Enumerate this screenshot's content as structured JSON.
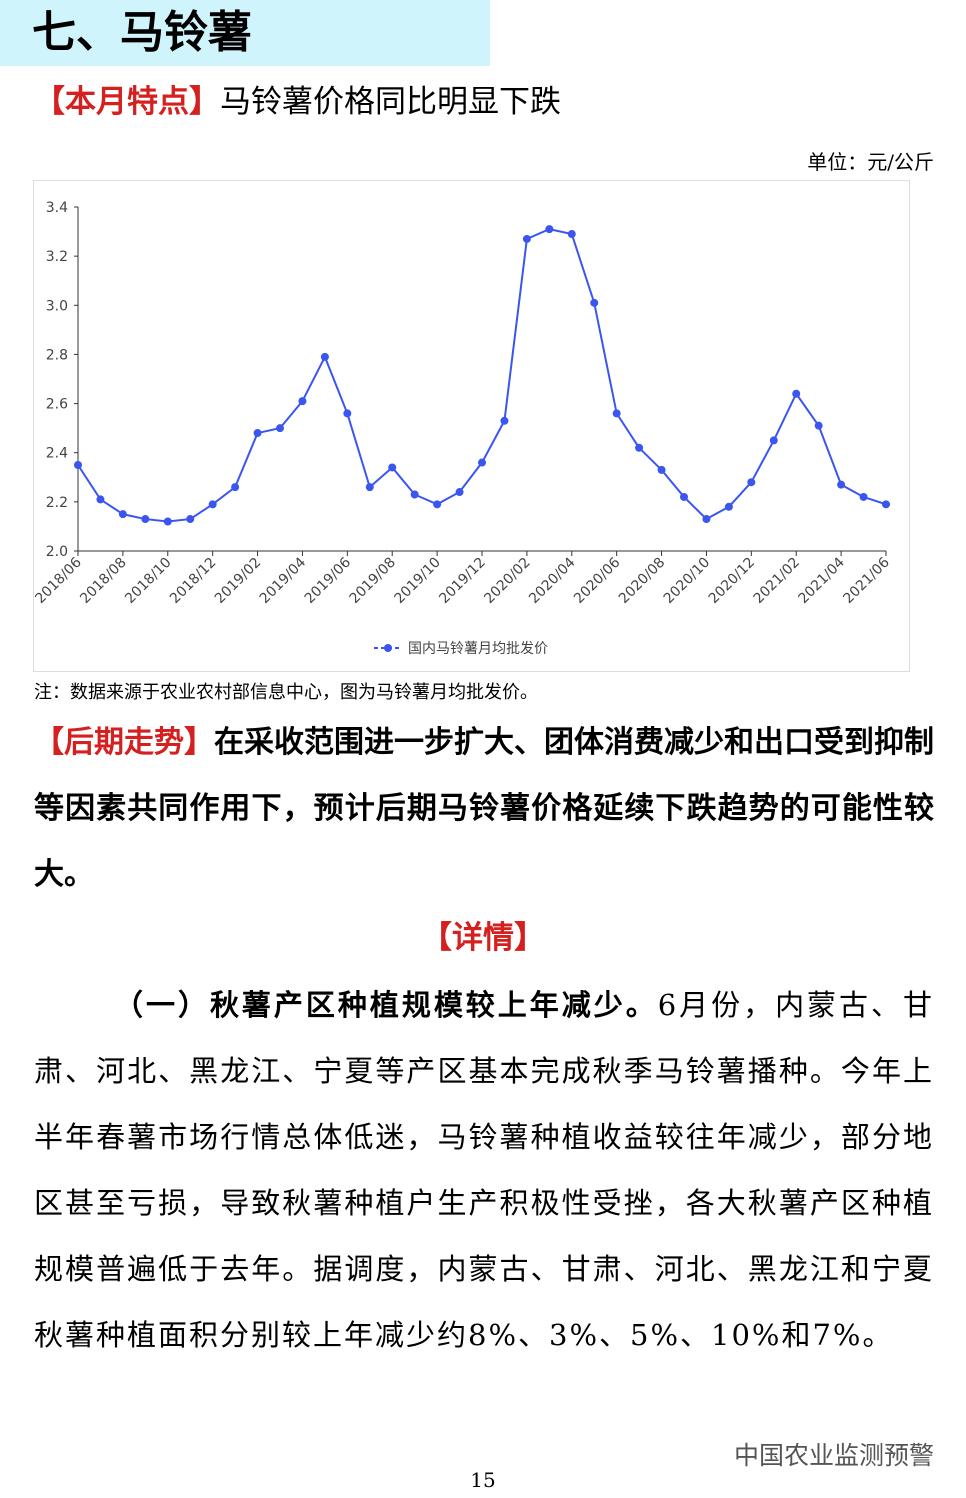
{
  "header": {
    "title": "七、马铃薯"
  },
  "feature": {
    "label": "【本月特点】",
    "text": "马铃薯价格同比明显下跌"
  },
  "unit": "单位：元/公斤",
  "chart_data": {
    "type": "line",
    "categories": [
      "2018/06",
      null,
      "2018/08",
      null,
      "2018/10",
      null,
      "2018/12",
      null,
      "2019/02",
      null,
      "2019/04",
      null,
      "2019/06",
      null,
      "2019/08",
      null,
      "2019/10",
      null,
      "2019/12",
      null,
      "2020/02",
      null,
      "2020/04",
      null,
      "2020/06",
      null,
      "2020/08",
      null,
      "2020/10",
      null,
      "2020/12",
      null,
      "2021/02",
      null,
      "2021/04",
      null,
      "2021/06"
    ],
    "series": [
      {
        "name": "国内马铃薯月均批发价",
        "color": "#3a55f0",
        "values": [
          2.35,
          2.21,
          2.15,
          2.13,
          2.12,
          2.13,
          2.19,
          2.26,
          2.48,
          2.5,
          2.61,
          2.79,
          2.56,
          2.26,
          2.34,
          2.23,
          2.19,
          2.24,
          2.36,
          2.53,
          3.27,
          3.31,
          3.29,
          3.01,
          2.56,
          2.42,
          2.33,
          2.22,
          2.13,
          2.18,
          2.28,
          2.45,
          2.64,
          2.51,
          2.27,
          2.22,
          2.19
        ]
      }
    ],
    "ylim": [
      2.0,
      3.4
    ],
    "yticks": [
      {
        "value": 2,
        "label": "2.0"
      },
      2.2,
      2.4,
      2.6,
      2.8,
      {
        "value": 3,
        "label": "3.0"
      },
      3.2,
      3.4
    ],
    "legend": "bottom"
  },
  "note": "注：数据来源于农业农村部信息中心，图为马铃薯月均批发价。",
  "trend": {
    "label": "【后期走势】",
    "text": "在采收范围进一步扩大、团体消费减少和出口受到抑制等因素共同作用下，预计后期马铃薯价格延续下跌趋势的可能性较大。"
  },
  "details": {
    "heading": "【详情】",
    "paragraphs": [
      {
        "lead": "（一）秋薯产区种植规模较上年减少。",
        "text": "6月份，内蒙古、甘肃、河北、黑龙江、宁夏等产区基本完成秋季马铃薯播种。今年上半年春薯市场行情总体低迷，马铃薯种植收益较往年减少，部分地区甚至亏损，导致秋薯种植户生产积极性受挫，各大秋薯产区种植规模普遍低于去年。据调度，内蒙古、甘肃、河北、黑龙江和宁夏秋薯种植面积分别较上年减少约8%、3%、5%、10%和7%。"
      }
    ]
  },
  "watermark": "中国农业监测预警",
  "page_number": "15"
}
